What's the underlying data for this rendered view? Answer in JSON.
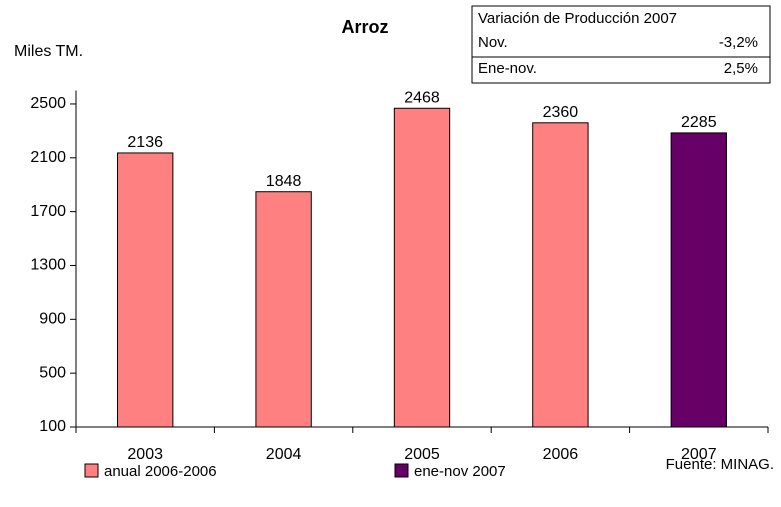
{
  "chart_data": {
    "type": "bar",
    "title": "Arroz",
    "y_axis_label": "Miles TM.",
    "source": "Fuente: MINAG.",
    "categories": [
      "2003",
      "2004",
      "2005",
      "2006",
      "2007"
    ],
    "series": [
      {
        "name": "anual 2006-2006",
        "color": "#ff8080",
        "values": [
          2136,
          1848,
          2468,
          2360,
          null
        ]
      },
      {
        "name": "ene-nov 2007",
        "color": "#660066",
        "values": [
          null,
          null,
          null,
          null,
          2285
        ]
      }
    ],
    "ylim": [
      100,
      2600
    ],
    "yticks": [
      100,
      500,
      900,
      1300,
      1700,
      2100,
      2500
    ],
    "info_box": {
      "title": "Variación de Producción 2007",
      "rows": [
        [
          "Nov.",
          "-3,2%"
        ],
        [
          "Ene-nov.",
          "2,5%"
        ]
      ]
    }
  }
}
